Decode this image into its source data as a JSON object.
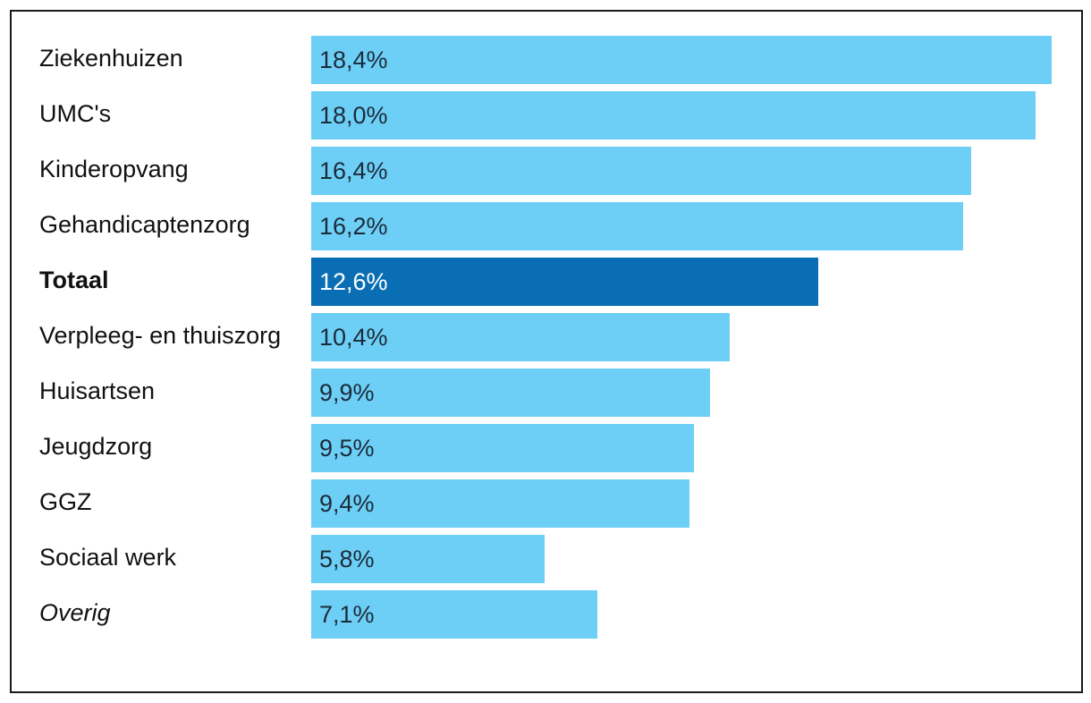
{
  "chart_data": {
    "type": "bar",
    "orientation": "horizontal",
    "categories": [
      "Ziekenhuizen",
      "UMC's",
      "Kinderopvang",
      "Gehandicaptenzorg",
      "Totaal",
      "Verpleeg- en thuiszorg",
      "Huisartsen",
      "Jeugdzorg",
      "GGZ",
      "Sociaal werk",
      "Overig"
    ],
    "values": [
      18.4,
      18.0,
      16.4,
      16.2,
      12.6,
      10.4,
      9.9,
      9.5,
      9.4,
      5.8,
      7.1
    ],
    "value_labels": [
      "18,4%",
      "18,0%",
      "16,4%",
      "16,2%",
      "12,6%",
      "10,4%",
      "9,9%",
      "9,5%",
      "9,4%",
      "5,8%",
      "7,1%"
    ],
    "label_styles": [
      "normal",
      "normal",
      "normal",
      "normal",
      "bold",
      "normal",
      "normal",
      "normal",
      "normal",
      "normal",
      "italic"
    ],
    "highlight_index": 4,
    "xlim": [
      0,
      18.4
    ],
    "title": "",
    "xlabel": "",
    "ylabel": "",
    "grid": false,
    "legend": "none"
  },
  "colors": {
    "bar": "#6dcff6",
    "highlight_bar": "#0a6eb4",
    "bar_label": "#1c2b3a",
    "highlight_label": "#ffffff",
    "category_label": "#111111"
  }
}
